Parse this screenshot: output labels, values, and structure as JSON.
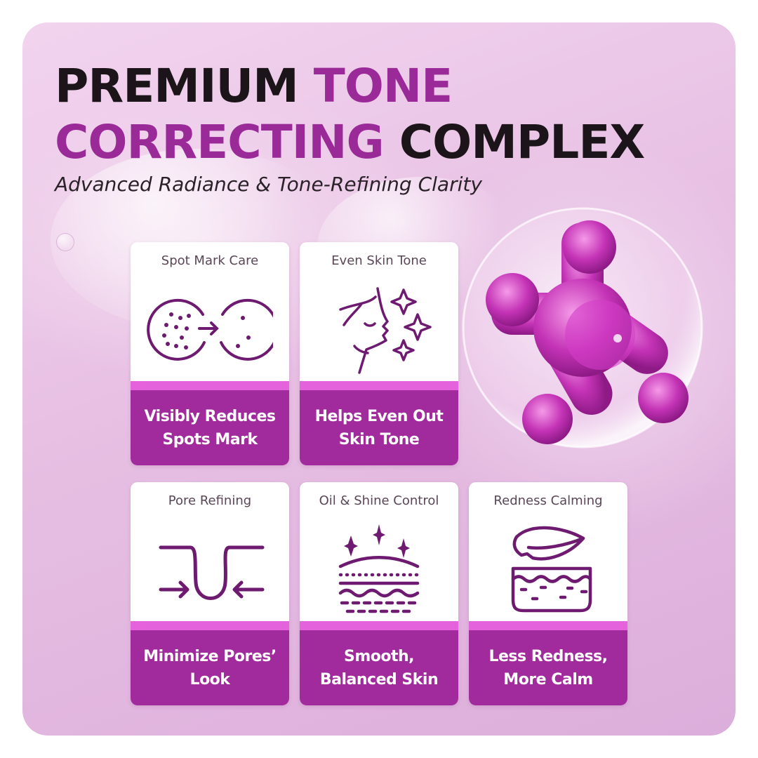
{
  "headline": {
    "line1_dark": "PREMIUM",
    "line1_accent": "TONE",
    "line2_accent": "CORRECTING",
    "line2_dark": "COMPLEX"
  },
  "subtitle": "Advanced Radiance & Tone-Refining Clarity",
  "colors": {
    "accent": "#9a2a98",
    "band": "#a12a9c",
    "stripe": "#e462dc",
    "icon": "#6d1a70",
    "background": "#e7bfe3"
  },
  "cards": [
    {
      "title": "Spot Mark Care",
      "icon": "spot-reduction-icon",
      "benefit": "Visibly Reduces Spots Mark"
    },
    {
      "title": "Even Skin Tone",
      "icon": "face-sparkle-icon",
      "benefit": "Helps Even Out Skin Tone"
    },
    {
      "title": "Pore Refining",
      "icon": "pore-tightening-icon",
      "benefit": "Minimize Pores’ Look"
    },
    {
      "title": "Oil & Shine Control",
      "icon": "skin-layers-sparkle-icon",
      "benefit": "Smooth, Balanced Skin"
    },
    {
      "title": "Redness Calming",
      "icon": "leaf-skin-icon",
      "benefit": "Less Redness, More Calm"
    }
  ]
}
